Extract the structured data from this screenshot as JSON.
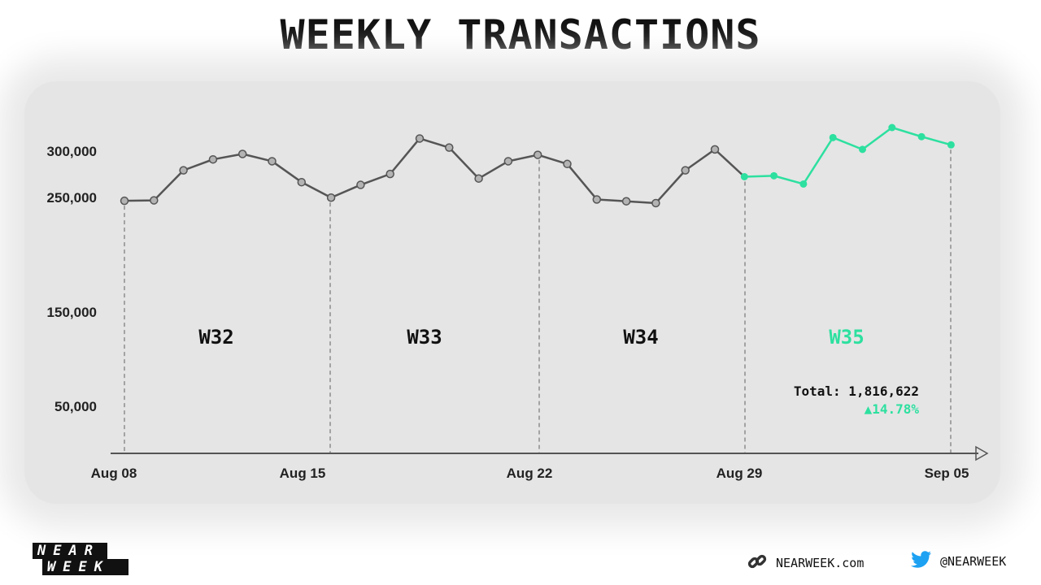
{
  "title": "WEEKLY TRANSACTIONS",
  "chart_data": {
    "type": "line",
    "y_ticks": [
      "300,000",
      "250,000",
      "150,000",
      "50,000"
    ],
    "y_tick_values": [
      300000,
      250000,
      150000,
      50000
    ],
    "x_ticks": [
      "Aug 08",
      "Aug 15",
      "Aug 22",
      "Aug 29",
      "Sep 05"
    ],
    "weeks": [
      "W32",
      "W33",
      "W34",
      "W35"
    ],
    "highlight_week": "W35",
    "highlight_color": "#2de0a0",
    "base_color": "#555555",
    "series": [
      {
        "values": [
          244500,
          245000,
          278000,
          290000,
          296000,
          288000,
          265000,
          248000,
          262000,
          274000,
          313000,
          303000,
          269000,
          288000,
          295000,
          285000,
          246000,
          244000,
          242000,
          278000,
          301000,
          271000
        ]
      },
      {
        "values": [
          271000,
          272000,
          263000,
          314000,
          301000,
          325000,
          315000,
          306000
        ]
      }
    ],
    "total": "Total: 1,816,622",
    "change": "▲14.78%"
  },
  "footer": {
    "logo_line1": "NEAR",
    "logo_line2": "WEEK",
    "website": "NEARWEEK.com",
    "twitter": "@NEARWEEK"
  }
}
